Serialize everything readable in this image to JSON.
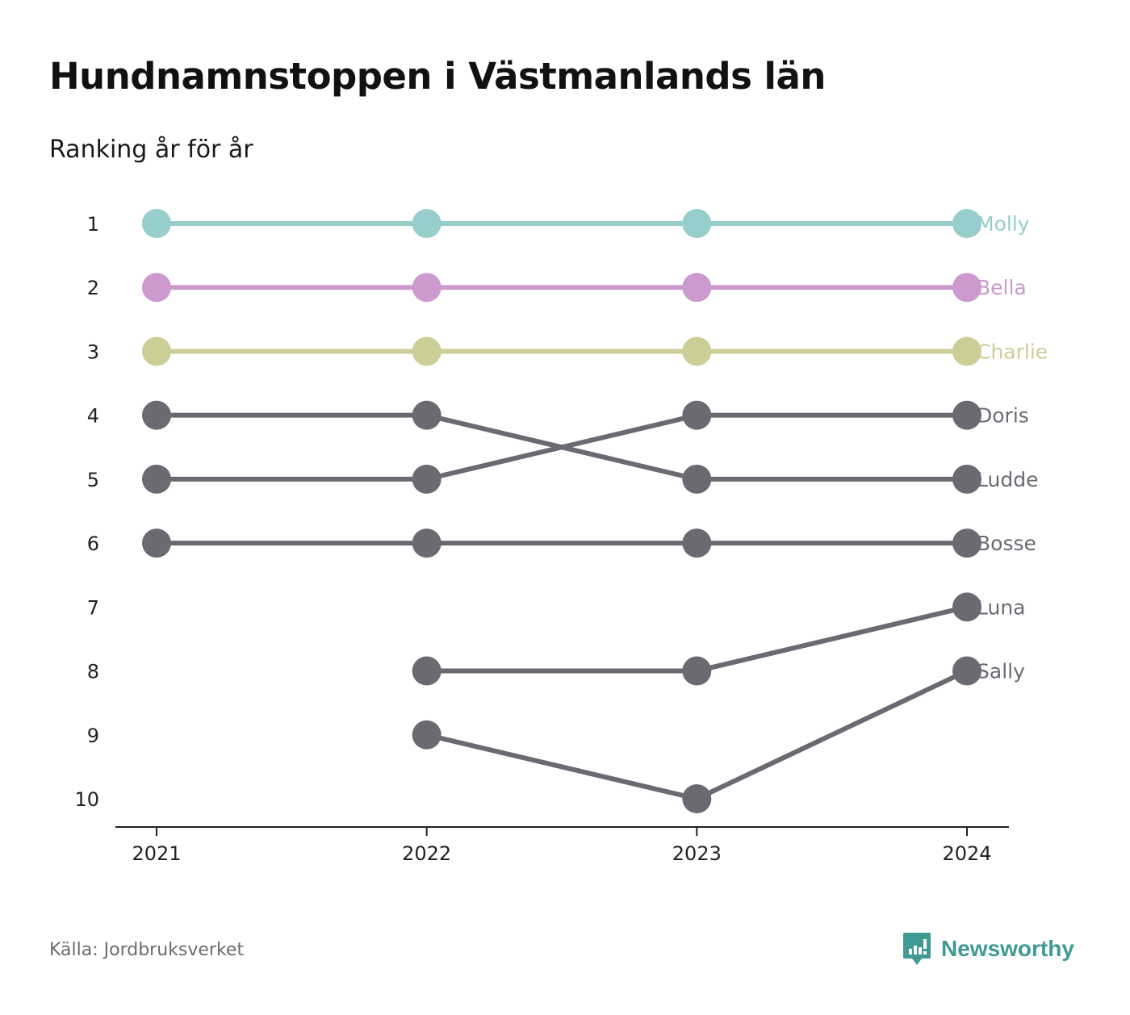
{
  "title": "Hundnamnstoppen i Västmanlands län",
  "subtitle": "Ranking år för år",
  "source": "Källa: Jordbruksverket",
  "brand": {
    "name": "Newsworthy",
    "icon": "newsworthy-logo-icon",
    "color": "#3f9a95"
  },
  "chart_data": {
    "type": "line",
    "subtype": "bump",
    "x": [
      "2021",
      "2022",
      "2023",
      "2024"
    ],
    "y_ticks": [
      "1",
      "2",
      "3",
      "4",
      "5",
      "6",
      "7",
      "8",
      "9",
      "10"
    ],
    "ylim": [
      1,
      10
    ],
    "y_reversed": true,
    "grid": false,
    "series": [
      {
        "name": "Molly",
        "color": "#97cdcb",
        "values": [
          1,
          1,
          1,
          1
        ]
      },
      {
        "name": "Bella",
        "color": "#cc9acf",
        "values": [
          2,
          2,
          2,
          2
        ]
      },
      {
        "name": "Charlie",
        "color": "#cdcd98",
        "values": [
          3,
          3,
          3,
          3
        ]
      },
      {
        "name": "Doris",
        "color": "#6b6a72",
        "values": [
          5,
          5,
          4,
          4
        ]
      },
      {
        "name": "Ludde",
        "color": "#6b6a72",
        "values": [
          4,
          4,
          5,
          5
        ]
      },
      {
        "name": "Bosse",
        "color": "#6b6a72",
        "values": [
          6,
          6,
          6,
          6
        ]
      },
      {
        "name": "Luna",
        "color": "#6b6a72",
        "values": [
          null,
          8,
          8,
          7
        ]
      },
      {
        "name": "Sally",
        "color": "#6b6a72",
        "values": [
          null,
          9,
          10,
          8
        ]
      }
    ]
  }
}
